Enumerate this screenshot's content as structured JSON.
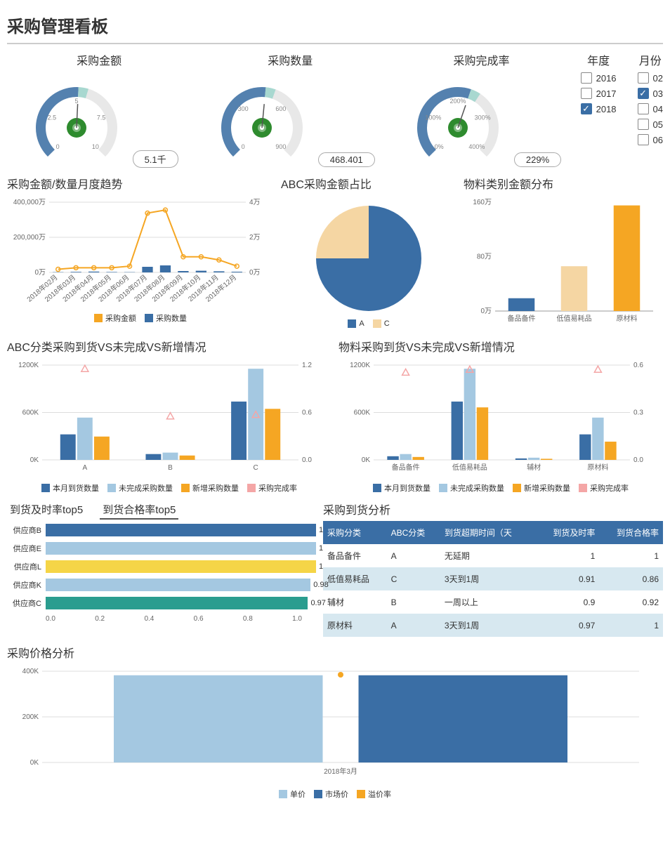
{
  "colors": {
    "blue_dark": "#3a6ea5",
    "blue_light": "#a4c8e1",
    "orange": "#f5a623",
    "orange_light": "#f5d6a3",
    "teal": "#2a9d8f",
    "yellow": "#f5d547",
    "pink": "#f4a6a6",
    "green_center": "#2e8b2e",
    "grid": "#dddddd",
    "bg": "#ffffff",
    "text": "#333333",
    "axis_text": "#666666"
  },
  "header": "采购管理看板",
  "gauges": [
    {
      "title": "采购金额",
      "value_label": "5.1千",
      "ticks": [
        "0",
        "2.5",
        "5",
        "7.5",
        "10"
      ],
      "fill_ratio": 0.51
    },
    {
      "title": "采购数量",
      "value_label": "468.401",
      "ticks": [
        "0",
        "300",
        "600",
        "900"
      ],
      "fill_ratio": 0.52
    },
    {
      "title": "采购完成率",
      "value_label": "229%",
      "ticks": [
        "0%",
        "100%",
        "200%",
        "300%",
        "400%"
      ],
      "fill_ratio": 0.57
    }
  ],
  "filters": {
    "year": {
      "title": "年度",
      "options": [
        {
          "label": "2016",
          "checked": false
        },
        {
          "label": "2017",
          "checked": false
        },
        {
          "label": "2018",
          "checked": true
        }
      ]
    },
    "month": {
      "title": "月份",
      "options": [
        {
          "label": "02",
          "checked": false
        },
        {
          "label": "03",
          "checked": true
        },
        {
          "label": "04",
          "checked": false
        },
        {
          "label": "05",
          "checked": false
        },
        {
          "label": "06",
          "checked": false
        }
      ]
    }
  },
  "trend": {
    "title": "采购金额/数量月度趋势",
    "categories": [
      "2018年02月",
      "2018年03月",
      "2018年04月",
      "2018年05月",
      "2018年06月",
      "2018年07月",
      "2018年08月",
      "2018年09月",
      "2018年10月",
      "2018年11月",
      "2018年12月"
    ],
    "bar_values": [
      2000,
      4000,
      6000,
      3000,
      2000,
      40000,
      50000,
      10000,
      12000,
      8000,
      5000
    ],
    "line_values": [
      0.2,
      0.3,
      0.3,
      0.3,
      0.4,
      3.8,
      4.0,
      1.0,
      1.0,
      0.8,
      0.4
    ],
    "y_left_ticks": [
      "0万",
      "200,000万",
      "400,000万"
    ],
    "y_right_ticks": [
      "0万",
      "2万",
      "4万"
    ],
    "y_left_max": 500000,
    "y_right_max": 4.5,
    "bar_color": "#3a6ea5",
    "line_color": "#f5a623",
    "legend": [
      {
        "label": "采购金额",
        "color": "#f5a623"
      },
      {
        "label": "采购数量",
        "color": "#3a6ea5"
      }
    ]
  },
  "pie": {
    "title": "ABC采购金额占比",
    "slices": [
      {
        "label": "A",
        "value": 75,
        "color": "#3a6ea5"
      },
      {
        "label": "C",
        "value": 25,
        "color": "#f5d6a3"
      }
    ]
  },
  "material_dist": {
    "title": "物料类别金额分布",
    "categories": [
      "备品备件",
      "低值易耗品",
      "原材料"
    ],
    "values": [
      20,
      70,
      165
    ],
    "colors": [
      "#3a6ea5",
      "#f5d6a3",
      "#f5a623"
    ],
    "y_ticks": [
      "0万",
      "80万",
      "160万"
    ],
    "y_max": 170
  },
  "abc_compare": {
    "title": "ABC分类采购到货VS未完成VS新增情况",
    "categories": [
      "A",
      "B",
      "C"
    ],
    "series": [
      {
        "name": "本月到货数量",
        "color": "#3a6ea5",
        "values": [
          350,
          80,
          800
        ]
      },
      {
        "name": "未完成采购数量",
        "color": "#a4c8e1",
        "values": [
          580,
          100,
          1250
        ]
      },
      {
        "name": "新增采购数量",
        "color": "#f5a623",
        "values": [
          320,
          60,
          700
        ]
      }
    ],
    "markers": {
      "name": "采购完成率",
      "color": "#f4a6a6",
      "values": [
        1.25,
        0.6,
        0.62
      ]
    },
    "y_left_ticks": [
      "0K",
      "600K",
      "1200K"
    ],
    "y_left_max": 1300,
    "y_right_ticks": [
      "0.0",
      "0.6",
      "1.2"
    ],
    "y_right_max": 1.3
  },
  "mat_compare": {
    "title": "物料采购到货VS未完成VS新增情况",
    "categories": [
      "备品备件",
      "低值易耗品",
      "辅材",
      "原材料"
    ],
    "series": [
      {
        "name": "本月到货数量",
        "color": "#3a6ea5",
        "values": [
          50,
          800,
          20,
          350
        ]
      },
      {
        "name": "未完成采购数量",
        "color": "#a4c8e1",
        "values": [
          80,
          1250,
          30,
          580
        ]
      },
      {
        "name": "新增采购数量",
        "color": "#f5a623",
        "values": [
          40,
          720,
          15,
          250
        ]
      }
    ],
    "markers": {
      "name": "采购完成率",
      "color": "#f4a6a6",
      "values": [
        0.6,
        0.62,
        0.0,
        0.62
      ]
    },
    "y_left_ticks": [
      "0K",
      "600K",
      "1200K"
    ],
    "y_left_max": 1300,
    "y_right_ticks": [
      "0.0",
      "0.3",
      "0.6"
    ],
    "y_right_max": 0.65
  },
  "top5": {
    "tabs": [
      {
        "label": "到货及时率top5",
        "active": false
      },
      {
        "label": "到货合格率top5",
        "active": true
      }
    ],
    "rows": [
      {
        "label": "供应商B",
        "value": 1,
        "color": "#3a6ea5"
      },
      {
        "label": "供应商E",
        "value": 1,
        "color": "#a4c8e1"
      },
      {
        "label": "供应商L",
        "value": 1,
        "color": "#f5d547"
      },
      {
        "label": "供应商K",
        "value": 0.98,
        "color": "#a4c8e1"
      },
      {
        "label": "供应商C",
        "value": 0.97,
        "color": "#2a9d8f"
      }
    ],
    "x_ticks": [
      "0.0",
      "0.2",
      "0.4",
      "0.6",
      "0.8",
      "1.0"
    ],
    "x_max": 1.0
  },
  "arrival_table": {
    "title": "采购到货分析",
    "columns": [
      "采购分类",
      "ABC分类",
      "到货超期时间（天",
      "到货及时率",
      "到货合格率"
    ],
    "rows": [
      [
        "备品备件",
        "A",
        "无延期",
        "1",
        "1"
      ],
      [
        "低值易耗品",
        "C",
        "3天到1周",
        "0.91",
        "0.86"
      ],
      [
        "辅材",
        "B",
        "一周以上",
        "0.9",
        "0.92"
      ],
      [
        "原材料",
        "A",
        "3天到1周",
        "0.97",
        "1"
      ]
    ]
  },
  "price": {
    "title": "采购价格分析",
    "category": "2018年3月",
    "series": [
      {
        "name": "单价",
        "color": "#a4c8e1",
        "value": 430
      },
      {
        "name": "市场价",
        "color": "#3a6ea5",
        "value": 430
      }
    ],
    "marker": {
      "name": "溢价率",
      "color": "#f5a623",
      "x": 0.5
    },
    "y_ticks": [
      "0K",
      "200K",
      "400K"
    ],
    "y_max": 450,
    "legend": [
      {
        "label": "单价",
        "color": "#a4c8e1"
      },
      {
        "label": "市场价",
        "color": "#3a6ea5"
      },
      {
        "label": "溢价率",
        "color": "#f5a623"
      }
    ]
  }
}
